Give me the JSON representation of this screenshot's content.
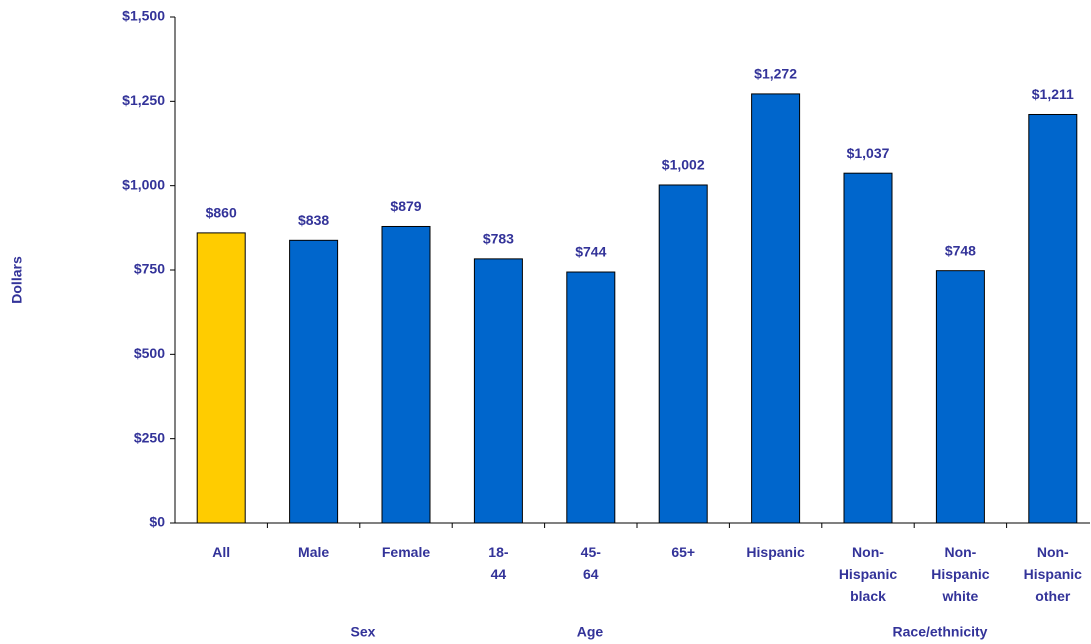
{
  "chart_data": {
    "type": "bar",
    "y_label": "Dollars",
    "categories": [
      "All",
      "Male",
      "Female",
      "18-44",
      "45-64",
      "65+",
      "Hispanic",
      "Non-Hispanic black",
      "Non-Hispanic white",
      "Non-Hispanic other"
    ],
    "values": [
      860,
      838,
      879,
      783,
      744,
      1002,
      1272,
      1037,
      748,
      1211
    ],
    "value_labels": [
      "$860",
      "$838",
      "$879",
      "$783",
      "$744",
      "$1,002",
      "$1,272",
      "$1,037",
      "$748",
      "$1,211"
    ],
    "colors": [
      "#ffcc00",
      "#0066cc",
      "#0066cc",
      "#0066cc",
      "#0066cc",
      "#0066cc",
      "#0066cc",
      "#0066cc",
      "#0066cc",
      "#0066cc"
    ],
    "groups": [
      "Sex",
      "Age",
      "Race/ethnicity"
    ],
    "ylim": [
      0,
      1500
    ],
    "yticks": [
      {
        "value": 0,
        "label": "$0"
      },
      {
        "value": 250,
        "label": "$250"
      },
      {
        "value": 500,
        "label": "$500"
      },
      {
        "value": 750,
        "label": "$750"
      },
      {
        "value": 1000,
        "label": "$1,000"
      },
      {
        "value": 1250,
        "label": "$1,250"
      },
      {
        "value": 1500,
        "label": "$1,500"
      }
    ],
    "grid": false
  }
}
